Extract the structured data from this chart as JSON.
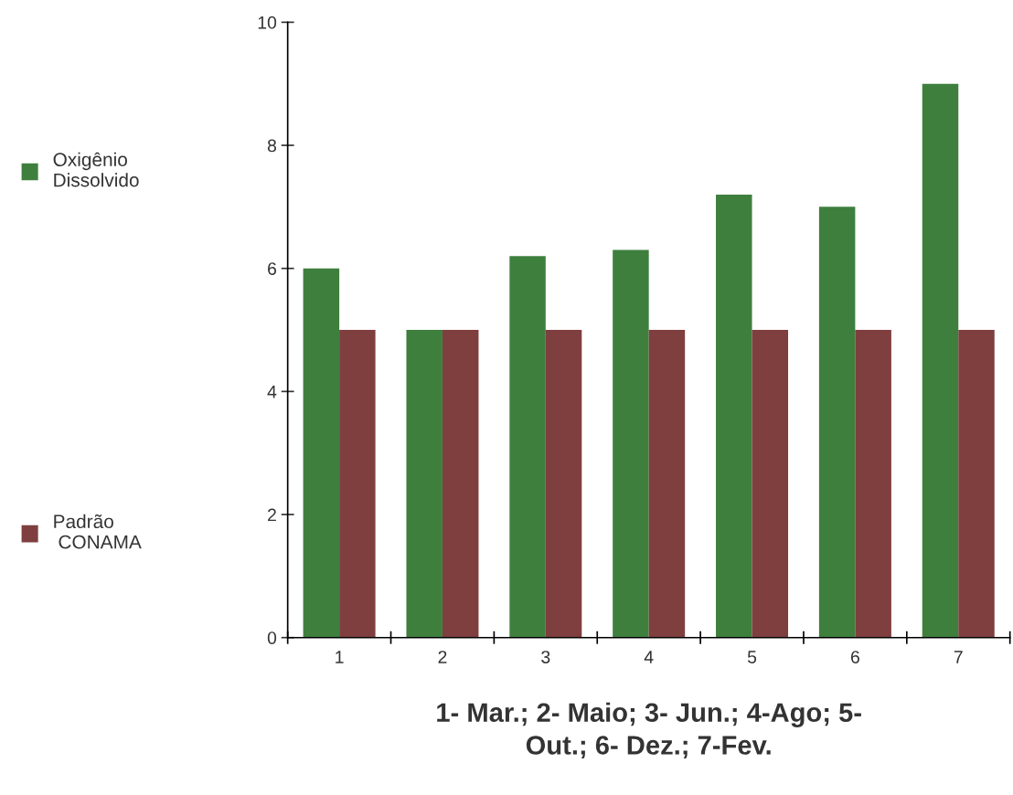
{
  "chart_data": {
    "type": "bar",
    "categories": [
      "1",
      "2",
      "3",
      "4",
      "5",
      "6",
      "7"
    ],
    "series": [
      {
        "name": "Oxigênio\nDissolvido",
        "color": "#3e7f3e",
        "values": [
          6.0,
          5.0,
          6.2,
          6.3,
          7.2,
          7.0,
          9.0
        ]
      },
      {
        "name": "Padrão\n CONAMA",
        "color": "#7f3f3f",
        "values": [
          5,
          5,
          5,
          5,
          5,
          5,
          5
        ]
      }
    ],
    "xlabel": "1- Mar.; 2- Maio; 3- Jun.; 4-Ago; 5-\nOut.; 6- Dez.; 7-Fev.",
    "ylim": [
      0,
      10
    ],
    "yticks": [
      0,
      2,
      4,
      6,
      8,
      10
    ],
    "grid": false,
    "legend": "left"
  }
}
